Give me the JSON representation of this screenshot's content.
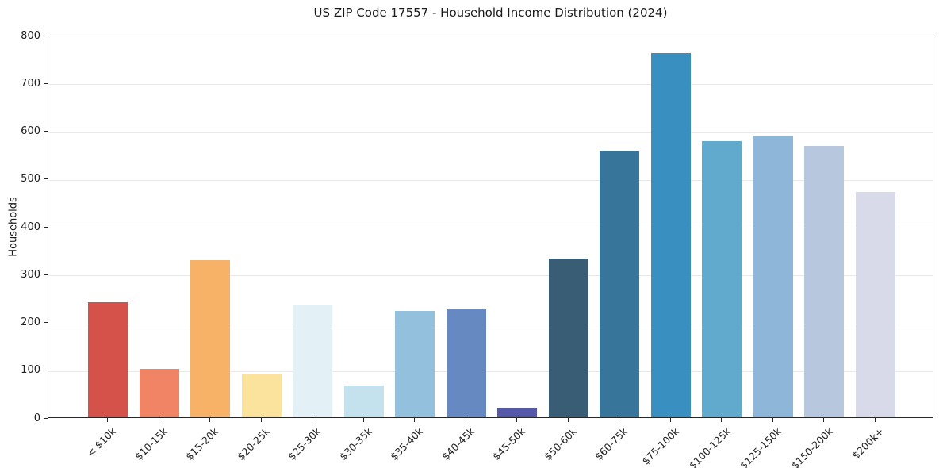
{
  "figure": {
    "background": "#ffffff",
    "axis_color": "#262626",
    "grid_color": "#e9e9e9"
  },
  "chart_data": {
    "type": "bar",
    "title": "US ZIP Code 17557 - Household Income Distribution (2024)",
    "xlabel": "",
    "ylabel": "Households",
    "ylim": [
      0,
      800
    ],
    "yticks": [
      0,
      100,
      200,
      300,
      400,
      500,
      600,
      700,
      800
    ],
    "grid": "horizontal",
    "legend": "none",
    "x_tick_rotation_deg": 45,
    "categories": [
      "< $10k",
      "$10-15k",
      "$15-20k",
      "$20-25k",
      "$25-30k",
      "$30-35k",
      "$35-40k",
      "$40-45k",
      "$45-50k",
      "$50-60k",
      "$60-75k",
      "$75-100k",
      "$100-125k",
      "$125-150k",
      "$150-200k",
      "$200k+"
    ],
    "values": [
      240,
      101,
      328,
      89,
      235,
      67,
      222,
      225,
      20,
      332,
      557,
      762,
      578,
      590,
      567,
      472
    ],
    "bar_colors": [
      "#d4524a",
      "#f08465",
      "#f8b268",
      "#fbe39e",
      "#e3f1f7",
      "#c3e2ed",
      "#93c0dc",
      "#6689c2",
      "#5558a7",
      "#385d74",
      "#37759a",
      "#388fc0",
      "#62a9ce",
      "#8db6d9",
      "#b6c7de",
      "#d8dae9"
    ]
  }
}
